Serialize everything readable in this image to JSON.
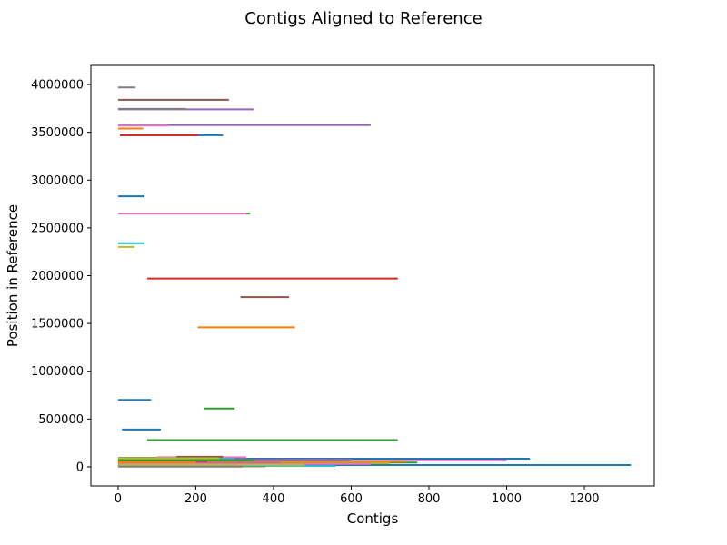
{
  "chart_data": {
    "type": "line",
    "title": "Contigs Aligned to Reference",
    "xlabel": "Contigs",
    "ylabel": "Position in Reference",
    "xlim": [
      -70,
      1380
    ],
    "ylim": [
      -200000,
      4200000
    ],
    "x_ticks": [
      0,
      200,
      400,
      600,
      800,
      1000,
      1200
    ],
    "y_ticks": [
      0,
      500000,
      1000000,
      1500000,
      2000000,
      2500000,
      3000000,
      3500000,
      4000000
    ],
    "grid": false,
    "segments": [
      {
        "x1": 0,
        "x2": 45,
        "y": 3970000,
        "color": "#7f7f7f"
      },
      {
        "x1": 0,
        "x2": 285,
        "y": 3840000,
        "color": "#8c564b"
      },
      {
        "x1": 0,
        "x2": 350,
        "y": 3740000,
        "color": "#9467bd"
      },
      {
        "x1": 0,
        "x2": 175,
        "y": 3745000,
        "color": "#7f7f7f"
      },
      {
        "x1": 0,
        "x2": 650,
        "y": 3575000,
        "color": "#9467bd"
      },
      {
        "x1": 0,
        "x2": 130,
        "y": 3570000,
        "color": "#e377c2"
      },
      {
        "x1": 0,
        "x2": 65,
        "y": 3540000,
        "color": "#ff7f0e"
      },
      {
        "x1": 5,
        "x2": 270,
        "y": 3470000,
        "color": "#1f77b4"
      },
      {
        "x1": 5,
        "x2": 205,
        "y": 3470000,
        "color": "#d62728"
      },
      {
        "x1": 0,
        "x2": 68,
        "y": 2830000,
        "color": "#1f77b4"
      },
      {
        "x1": 0,
        "x2": 340,
        "y": 2650000,
        "color": "#2ca02c"
      },
      {
        "x1": 0,
        "x2": 330,
        "y": 2650000,
        "color": "#e377c2"
      },
      {
        "x1": 0,
        "x2": 68,
        "y": 2340000,
        "color": "#17becf"
      },
      {
        "x1": 0,
        "x2": 42,
        "y": 2300000,
        "color": "#bcbd22"
      },
      {
        "x1": 75,
        "x2": 720,
        "y": 1970000,
        "color": "#d62728"
      },
      {
        "x1": 315,
        "x2": 440,
        "y": 1775000,
        "color": "#8c564b"
      },
      {
        "x1": 205,
        "x2": 455,
        "y": 1460000,
        "color": "#ff7f0e"
      },
      {
        "x1": 0,
        "x2": 85,
        "y": 700000,
        "color": "#1f77b4"
      },
      {
        "x1": 220,
        "x2": 300,
        "y": 610000,
        "color": "#2ca02c"
      },
      {
        "x1": 10,
        "x2": 110,
        "y": 390000,
        "color": "#1f77b4"
      },
      {
        "x1": 75,
        "x2": 720,
        "y": 280000,
        "color": "#2ca02c"
      },
      {
        "x1": 0,
        "x2": 1060,
        "y": 85000,
        "color": "#1f77b4"
      },
      {
        "x1": 0,
        "x2": 290,
        "y": 95000,
        "color": "#7f7f7f"
      },
      {
        "x1": 100,
        "x2": 330,
        "y": 100000,
        "color": "#e377c2"
      },
      {
        "x1": 150,
        "x2": 270,
        "y": 105000,
        "color": "#8c564b"
      },
      {
        "x1": 0,
        "x2": 1000,
        "y": 65000,
        "color": "#e377c2"
      },
      {
        "x1": 0,
        "x2": 770,
        "y": 45000,
        "color": "#2ca02c"
      },
      {
        "x1": 0,
        "x2": 740,
        "y": 55000,
        "color": "#ff7f0e"
      },
      {
        "x1": 0,
        "x2": 600,
        "y": 75000,
        "color": "#9467bd"
      },
      {
        "x1": 0,
        "x2": 700,
        "y": 35000,
        "color": "#bcbd22"
      },
      {
        "x1": 0,
        "x2": 1320,
        "y": 18000,
        "color": "#1f77b4"
      },
      {
        "x1": 0,
        "x2": 540,
        "y": 25000,
        "color": "#d62728"
      },
      {
        "x1": 0,
        "x2": 470,
        "y": 15000,
        "color": "#7f7f7f"
      },
      {
        "x1": 0,
        "x2": 380,
        "y": 5000,
        "color": "#8c564b"
      },
      {
        "x1": 0,
        "x2": 560,
        "y": 10000,
        "color": "#17becf"
      },
      {
        "x1": 0,
        "x2": 300,
        "y": 80000,
        "color": "#17becf"
      },
      {
        "x1": 0,
        "x2": 260,
        "y": 90000,
        "color": "#bcbd22"
      },
      {
        "x1": 0,
        "x2": 420,
        "y": 40000,
        "color": "#9467bd"
      },
      {
        "x1": 0,
        "x2": 230,
        "y": 60000,
        "color": "#d62728"
      },
      {
        "x1": 0,
        "x2": 650,
        "y": 30000,
        "color": "#e377c2"
      },
      {
        "x1": 0,
        "x2": 350,
        "y": 70000,
        "color": "#2ca02c"
      },
      {
        "x1": 0,
        "x2": 200,
        "y": 50000,
        "color": "#ff7f0e"
      },
      {
        "x1": 0,
        "x2": 480,
        "y": 20000,
        "color": "#bcbd22"
      },
      {
        "x1": 0,
        "x2": 320,
        "y": 2000,
        "color": "#7f7f7f"
      }
    ]
  }
}
